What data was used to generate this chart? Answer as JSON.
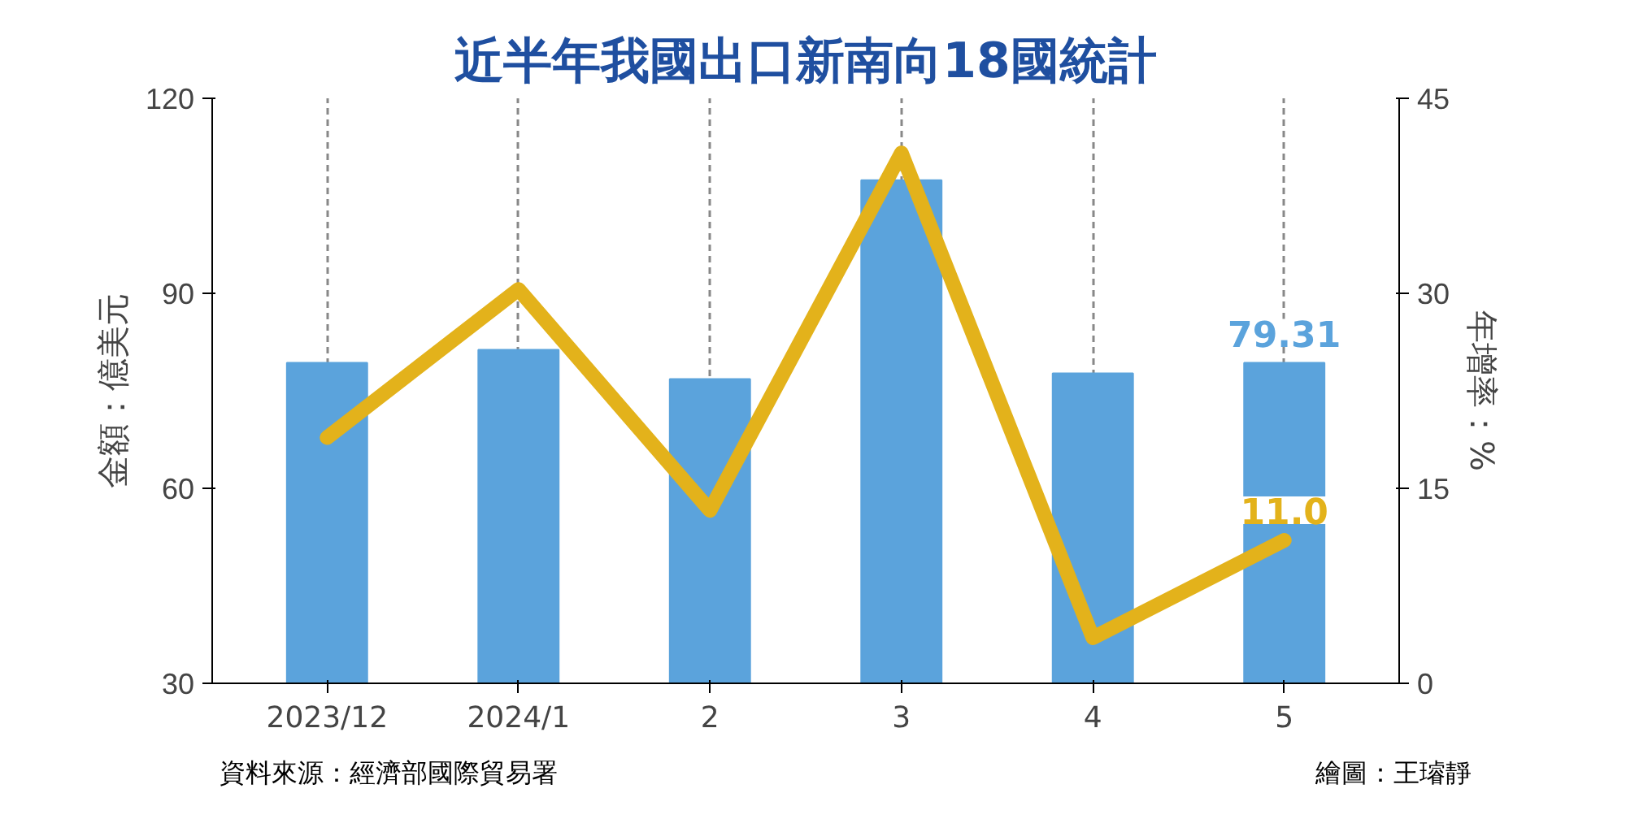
{
  "chart_data": {
    "type": "bar",
    "title": "近半年我國出口新南向18國統計",
    "categories": [
      "2023/12",
      "2024/1",
      "2",
      "3",
      "4",
      "5"
    ],
    "series": [
      {
        "color": "#5ba3dc",
        "values": [
          79.3,
          81.3,
          76.8,
          107.4,
          77.7,
          79.31
        ],
        "value_labels": [
          null,
          null,
          null,
          null,
          null,
          "79.31"
        ]
      },
      {
        "type": "line",
        "axis": "y2",
        "color": "#e3b21b",
        "values": [
          18.9,
          30.3,
          13.3,
          40.8,
          3.5,
          11.0
        ],
        "value_labels": [
          null,
          null,
          null,
          null,
          null,
          "11.0"
        ]
      }
    ],
    "ylabel": "金額：億美元",
    "y2label": "年增率：%",
    "ylim": [
      30,
      120
    ],
    "yticks": [
      30,
      60,
      90,
      120
    ],
    "y2lim": [
      0,
      45
    ],
    "y2ticks": [
      0,
      15,
      30,
      45
    ],
    "grid": "x",
    "annotations": [
      "資料來源：經濟部國際貿易署",
      "繪圖：王璿靜"
    ]
  }
}
